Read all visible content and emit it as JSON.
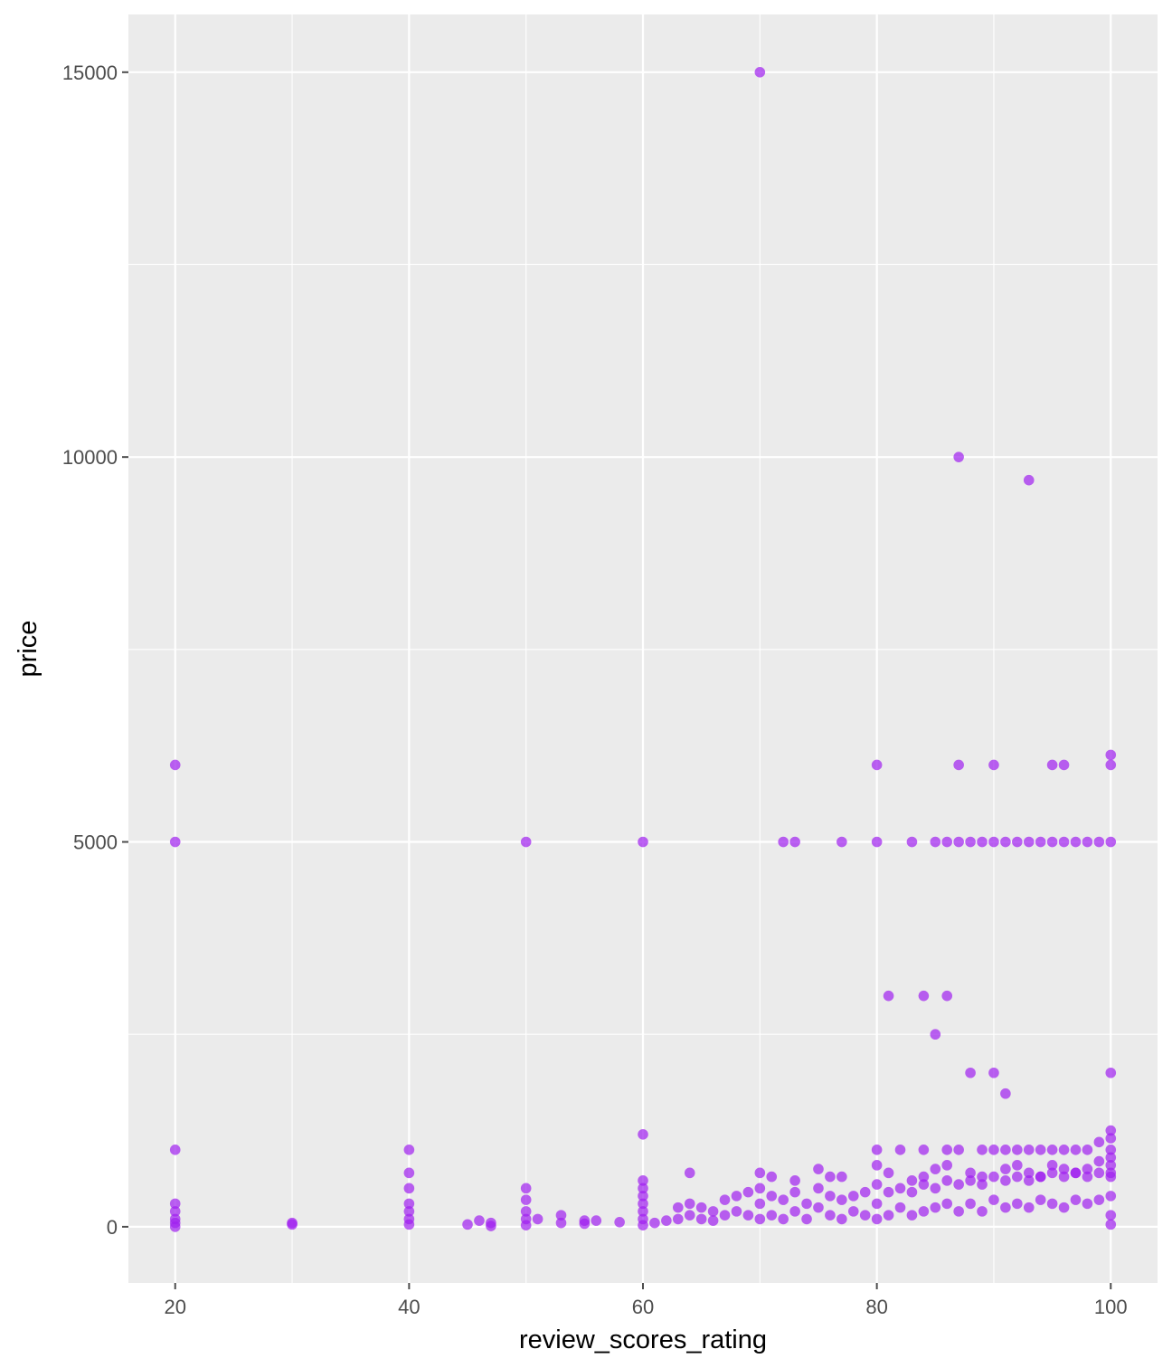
{
  "chart_data": {
    "type": "scatter",
    "title": "",
    "xlabel": "review_scores_rating",
    "ylabel": "price",
    "xlim": [
      16,
      104
    ],
    "ylim": [
      -730,
      15750
    ],
    "x_ticks": [
      20,
      40,
      60,
      80,
      100
    ],
    "x_tick_labels": [
      "20",
      "40",
      "60",
      "80",
      "100"
    ],
    "y_ticks": [
      0,
      5000,
      10000,
      15000
    ],
    "y_tick_labels": [
      "0",
      "5000",
      "10000",
      "15000"
    ],
    "grid": true,
    "legend": "none",
    "colors": {
      "point": "#a020f0",
      "panel": "#ebebeb",
      "grid": "#ffffff",
      "tick": "#4d4d4d"
    },
    "series": [
      {
        "points": [
          [
            70,
            15000
          ],
          [
            87,
            10000
          ],
          [
            93,
            9700
          ],
          [
            20,
            6000
          ],
          [
            80,
            6000
          ],
          [
            87,
            6000
          ],
          [
            90,
            6000
          ],
          [
            95,
            6000
          ],
          [
            96,
            6000
          ],
          [
            100,
            6000
          ],
          [
            100,
            6130
          ],
          [
            20,
            5000
          ],
          [
            50,
            5000
          ],
          [
            60,
            5000
          ],
          [
            72,
            5000
          ],
          [
            73,
            5000
          ],
          [
            77,
            5000
          ],
          [
            80,
            5000
          ],
          [
            83,
            5000
          ],
          [
            85,
            5000
          ],
          [
            86,
            5000
          ],
          [
            87,
            5000
          ],
          [
            88,
            5000
          ],
          [
            89,
            5000
          ],
          [
            90,
            5000
          ],
          [
            91,
            5000
          ],
          [
            92,
            5000
          ],
          [
            93,
            5000
          ],
          [
            94,
            5000
          ],
          [
            95,
            5000
          ],
          [
            96,
            5000
          ],
          [
            97,
            5000
          ],
          [
            98,
            5000
          ],
          [
            99,
            5000
          ],
          [
            100,
            5000
          ],
          [
            81,
            3000
          ],
          [
            84,
            3000
          ],
          [
            86,
            3000
          ],
          [
            85,
            2500
          ],
          [
            88,
            2000
          ],
          [
            90,
            2000
          ],
          [
            91,
            1730
          ],
          [
            100,
            2000
          ],
          [
            20,
            1000
          ],
          [
            40,
            1000
          ],
          [
            60,
            1200
          ],
          [
            100,
            1250
          ],
          [
            100,
            1150
          ],
          [
            99,
            1100
          ],
          [
            80,
            1000
          ],
          [
            82,
            1000
          ],
          [
            84,
            1000
          ],
          [
            86,
            1000
          ],
          [
            87,
            1000
          ],
          [
            89,
            1000
          ],
          [
            90,
            1000
          ],
          [
            91,
            1000
          ],
          [
            92,
            1000
          ],
          [
            93,
            1000
          ],
          [
            94,
            1000
          ],
          [
            95,
            1000
          ],
          [
            96,
            1000
          ],
          [
            97,
            1000
          ],
          [
            98,
            1000
          ],
          [
            100,
            1000
          ],
          [
            40,
            700
          ],
          [
            40,
            500
          ],
          [
            64,
            700
          ],
          [
            60,
            600
          ],
          [
            60,
            500
          ],
          [
            50,
            500
          ],
          [
            70,
            700
          ],
          [
            71,
            650
          ],
          [
            73,
            600
          ],
          [
            75,
            750
          ],
          [
            76,
            650
          ],
          [
            77,
            650
          ],
          [
            80,
            800
          ],
          [
            81,
            700
          ],
          [
            83,
            600
          ],
          [
            84,
            650
          ],
          [
            85,
            750
          ],
          [
            86,
            800
          ],
          [
            88,
            700
          ],
          [
            89,
            650
          ],
          [
            91,
            750
          ],
          [
            92,
            800
          ],
          [
            93,
            700
          ],
          [
            94,
            650
          ],
          [
            95,
            800
          ],
          [
            96,
            750
          ],
          [
            97,
            700
          ],
          [
            98,
            750
          ],
          [
            99,
            850
          ],
          [
            100,
            900
          ],
          [
            100,
            800
          ],
          [
            100,
            700
          ],
          [
            20,
            300
          ],
          [
            20,
            200
          ],
          [
            20,
            100
          ],
          [
            20,
            50
          ],
          [
            20,
            0
          ],
          [
            30,
            50
          ],
          [
            30,
            30
          ],
          [
            40,
            300
          ],
          [
            40,
            200
          ],
          [
            40,
            100
          ],
          [
            40,
            30
          ],
          [
            45,
            30
          ],
          [
            46,
            80
          ],
          [
            47,
            50
          ],
          [
            47,
            10
          ],
          [
            50,
            350
          ],
          [
            50,
            200
          ],
          [
            50,
            100
          ],
          [
            50,
            20
          ],
          [
            51,
            100
          ],
          [
            53,
            150
          ],
          [
            53,
            50
          ],
          [
            55,
            80
          ],
          [
            55,
            40
          ],
          [
            56,
            80
          ],
          [
            58,
            60
          ],
          [
            60,
            400
          ],
          [
            60,
            300
          ],
          [
            60,
            200
          ],
          [
            60,
            100
          ],
          [
            60,
            20
          ],
          [
            61,
            50
          ],
          [
            62,
            80
          ],
          [
            63,
            250
          ],
          [
            63,
            100
          ],
          [
            64,
            300
          ],
          [
            64,
            150
          ],
          [
            65,
            250
          ],
          [
            65,
            100
          ],
          [
            66,
            200
          ],
          [
            66,
            80
          ],
          [
            67,
            350
          ],
          [
            67,
            150
          ],
          [
            68,
            400
          ],
          [
            68,
            200
          ],
          [
            69,
            450
          ],
          [
            69,
            150
          ],
          [
            70,
            500
          ],
          [
            70,
            300
          ],
          [
            70,
            100
          ],
          [
            71,
            400
          ],
          [
            71,
            150
          ],
          [
            72,
            350
          ],
          [
            72,
            100
          ],
          [
            73,
            450
          ],
          [
            73,
            200
          ],
          [
            74,
            300
          ],
          [
            74,
            100
          ],
          [
            75,
            500
          ],
          [
            75,
            250
          ],
          [
            76,
            400
          ],
          [
            76,
            150
          ],
          [
            77,
            350
          ],
          [
            77,
            100
          ],
          [
            78,
            400
          ],
          [
            78,
            200
          ],
          [
            79,
            450
          ],
          [
            79,
            150
          ],
          [
            80,
            550
          ],
          [
            80,
            300
          ],
          [
            80,
            100
          ],
          [
            81,
            450
          ],
          [
            81,
            150
          ],
          [
            82,
            500
          ],
          [
            82,
            250
          ],
          [
            83,
            450
          ],
          [
            83,
            150
          ],
          [
            84,
            550
          ],
          [
            84,
            200
          ],
          [
            85,
            500
          ],
          [
            85,
            250
          ],
          [
            86,
            600
          ],
          [
            86,
            300
          ],
          [
            87,
            550
          ],
          [
            87,
            200
          ],
          [
            88,
            600
          ],
          [
            88,
            300
          ],
          [
            89,
            550
          ],
          [
            89,
            200
          ],
          [
            90,
            650
          ],
          [
            90,
            350
          ],
          [
            91,
            600
          ],
          [
            91,
            250
          ],
          [
            92,
            650
          ],
          [
            92,
            300
          ],
          [
            93,
            600
          ],
          [
            93,
            250
          ],
          [
            94,
            650
          ],
          [
            94,
            350
          ],
          [
            95,
            700
          ],
          [
            95,
            300
          ],
          [
            96,
            650
          ],
          [
            96,
            250
          ],
          [
            97,
            700
          ],
          [
            97,
            350
          ],
          [
            98,
            650
          ],
          [
            98,
            300
          ],
          [
            99,
            700
          ],
          [
            99,
            350
          ],
          [
            100,
            650
          ],
          [
            100,
            400
          ],
          [
            100,
            150
          ],
          [
            100,
            30
          ]
        ]
      }
    ]
  }
}
